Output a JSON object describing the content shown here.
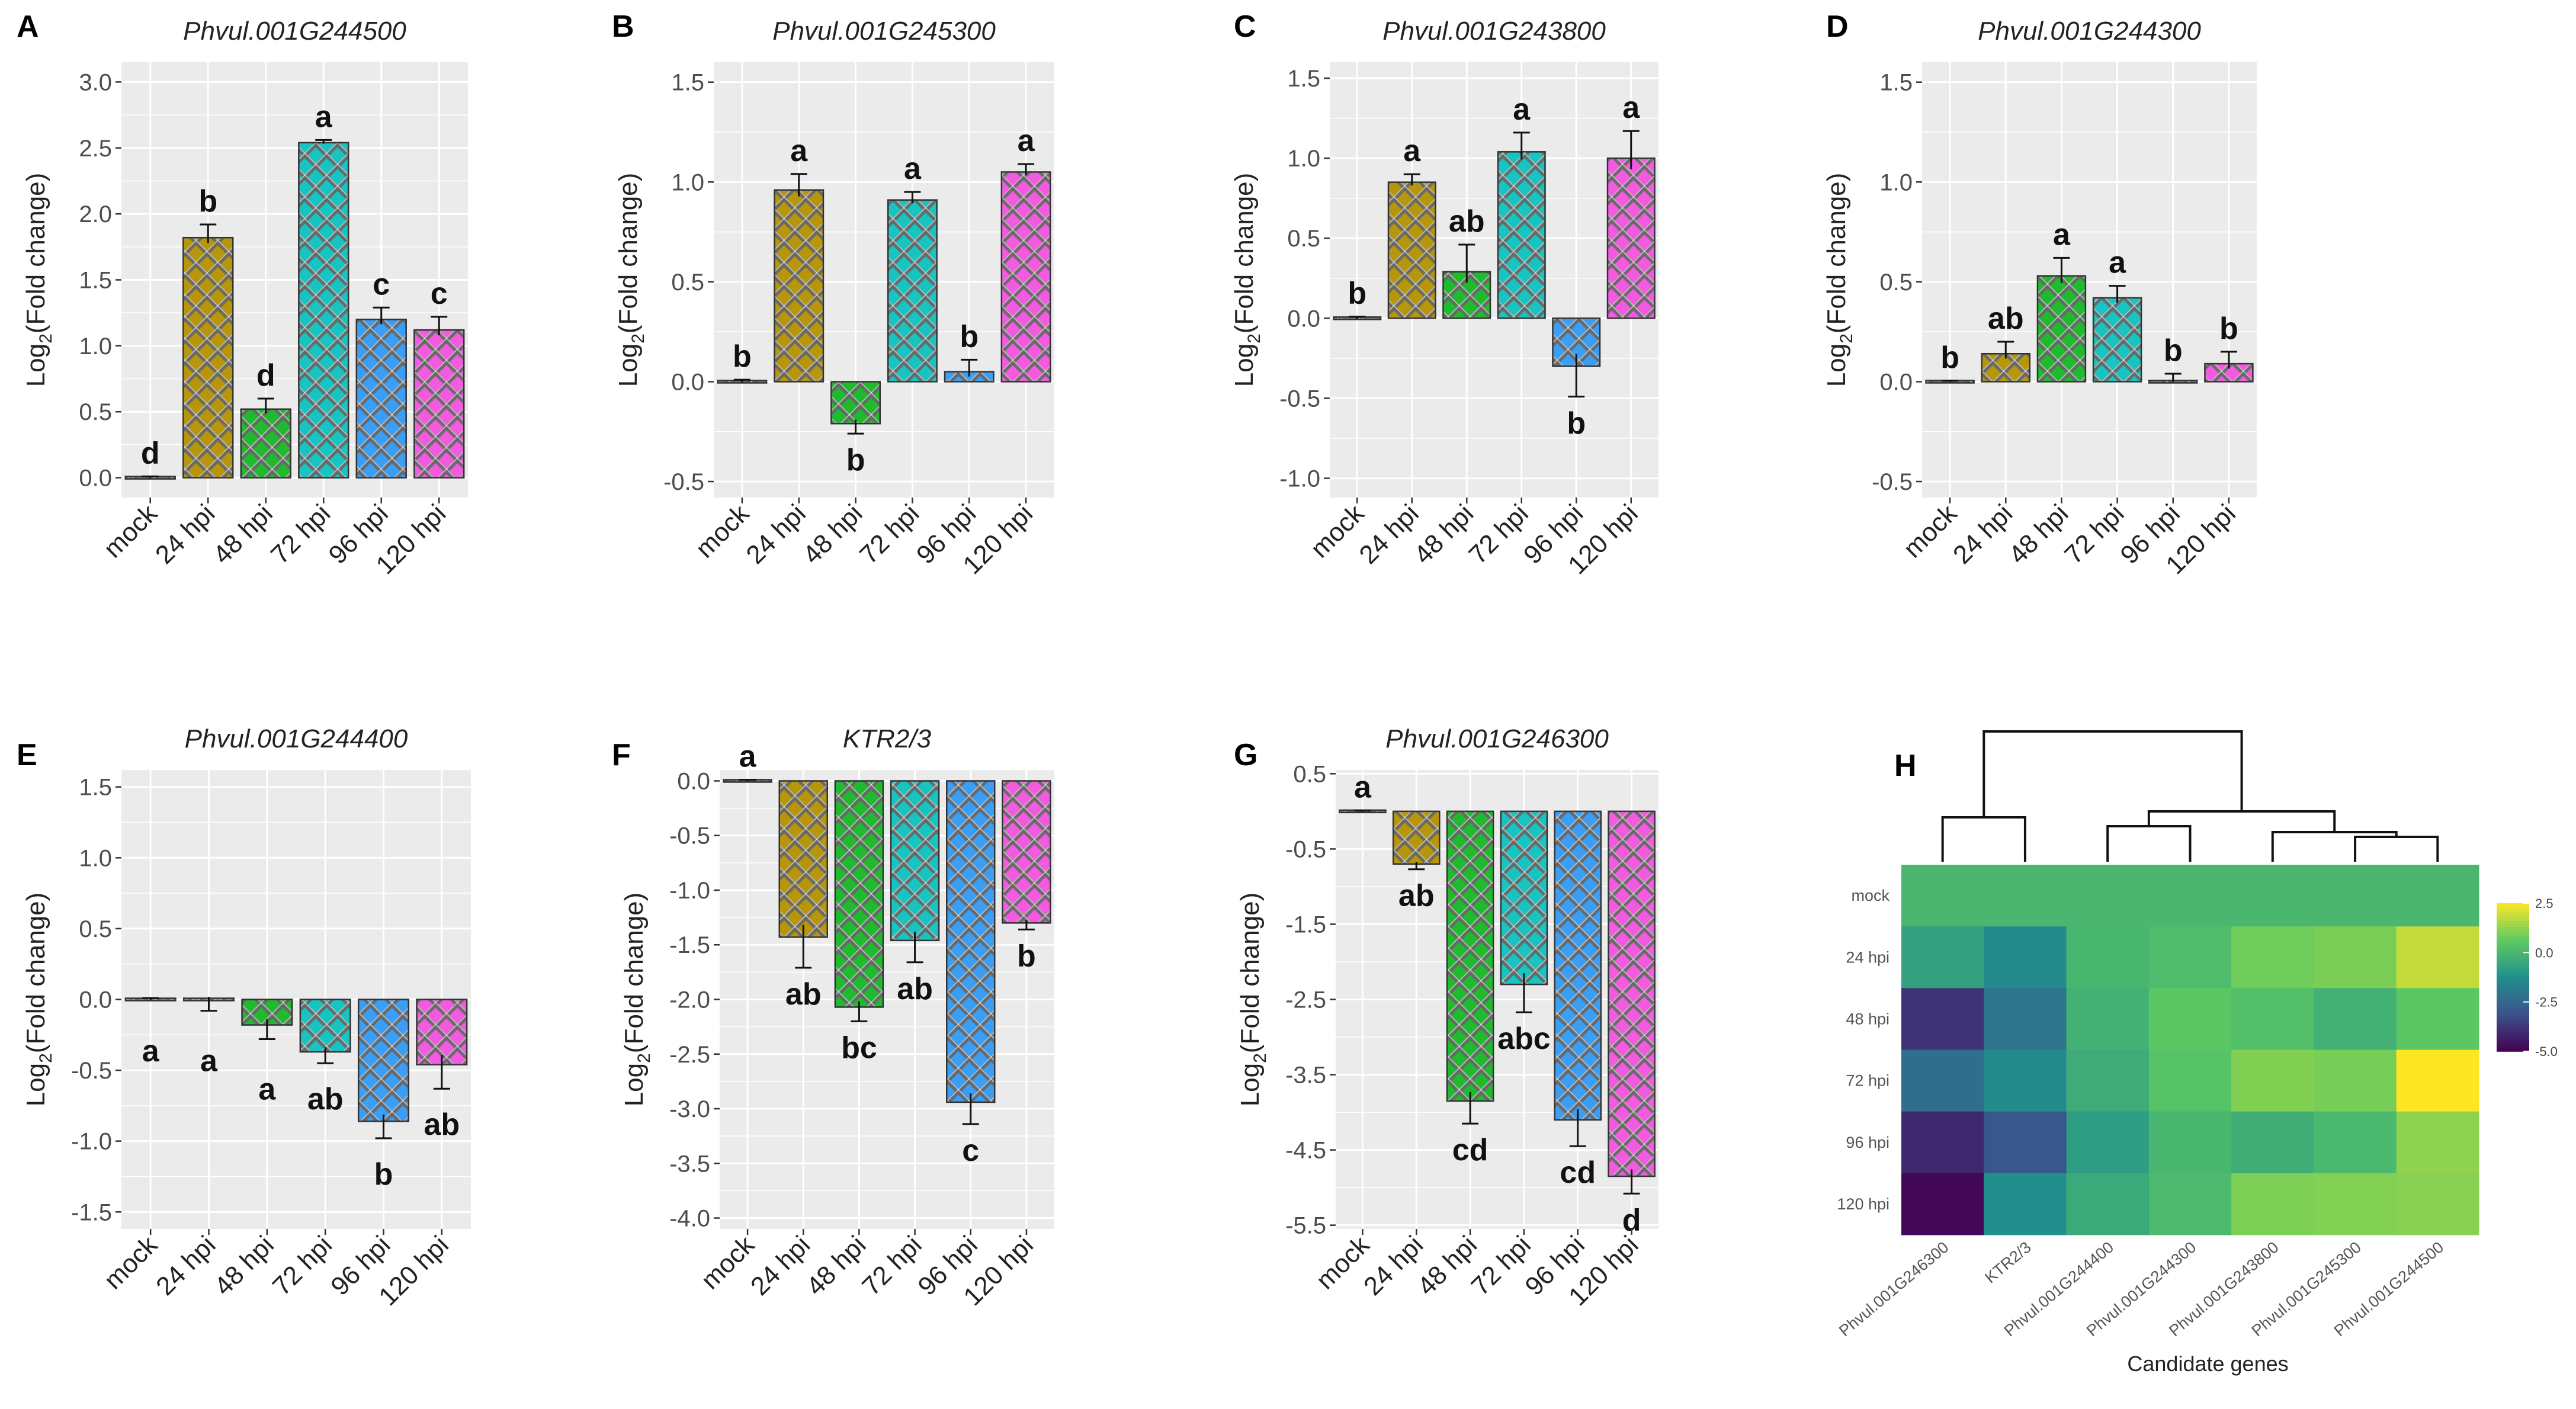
{
  "chart_data": [
    {
      "type": "bar",
      "panel": "A",
      "title": "Phvul.001G244500",
      "ylabel": "Log2(Fold change)",
      "ylabel_main": "Log",
      "ylabel_sub": "2",
      "ylabel_tail": "(Fold change)",
      "categories": [
        "mock",
        "24 hpi",
        "48 hpi",
        "72 hpi",
        "96 hpi",
        "120 hpi"
      ],
      "values": [
        0.0,
        1.82,
        0.52,
        2.54,
        1.2,
        1.12
      ],
      "errors": [
        0.01,
        0.1,
        0.08,
        0.02,
        0.09,
        0.1
      ],
      "letters": [
        "d",
        "b",
        "d",
        "a",
        "c",
        "c"
      ],
      "ylim": [
        -0.15,
        3.15
      ],
      "yticks": [
        0.0,
        0.5,
        1.0,
        1.5,
        2.0,
        2.5,
        3.0
      ],
      "ytick_labels": [
        "0.0",
        "0.5",
        "1.0",
        "1.5",
        "2.0",
        "2.5",
        "3.0"
      ]
    },
    {
      "type": "bar",
      "panel": "B",
      "title": "Phvul.001G245300",
      "ylabel": "Log2(Fold change)",
      "ylabel_main": "Log",
      "ylabel_sub": "2",
      "ylabel_tail": "(Fold change)",
      "categories": [
        "mock",
        "24 hpi",
        "48 hpi",
        "72 hpi",
        "96 hpi",
        "120 hpi"
      ],
      "values": [
        0.0,
        0.96,
        -0.21,
        0.91,
        0.05,
        1.05
      ],
      "errors": [
        0.01,
        0.08,
        0.05,
        0.04,
        0.06,
        0.04
      ],
      "letters": [
        "b",
        "a",
        "b",
        "a",
        "b",
        "a"
      ],
      "ylim": [
        -0.58,
        1.6
      ],
      "yticks": [
        -0.5,
        0.0,
        0.5,
        1.0,
        1.5
      ],
      "ytick_labels": [
        "-0.5",
        "0.0",
        "0.5",
        "1.0",
        "1.5"
      ]
    },
    {
      "type": "bar",
      "panel": "C",
      "title": "Phvul.001G243800",
      "ylabel": "Log2(Fold change)",
      "ylabel_main": "Log",
      "ylabel_sub": "2",
      "ylabel_tail": "(Fold change)",
      "categories": [
        "mock",
        "24 hpi",
        "48 hpi",
        "72 hpi",
        "96 hpi",
        "120 hpi"
      ],
      "values": [
        0.0,
        0.85,
        0.29,
        1.04,
        -0.3,
        1.0
      ],
      "errors": [
        0.01,
        0.05,
        0.17,
        0.12,
        0.19,
        0.17
      ],
      "letters": [
        "b",
        "a",
        "ab",
        "a",
        "b",
        "a"
      ],
      "ylim": [
        -1.12,
        1.6
      ],
      "yticks": [
        -1.0,
        -0.5,
        0.0,
        0.5,
        1.0,
        1.5
      ],
      "ytick_labels": [
        "-1.0",
        "-0.5",
        "0.0",
        "0.5",
        "1.0",
        "1.5"
      ]
    },
    {
      "type": "bar",
      "panel": "D",
      "title": "Phvul.001G244300",
      "ylabel": "Log2(Fold change)",
      "ylabel_main": "Log",
      "ylabel_sub": "2",
      "ylabel_tail": "(Fold change)",
      "categories": [
        "mock",
        "24 hpi",
        "48 hpi",
        "72 hpi",
        "96 hpi",
        "120 hpi"
      ],
      "values": [
        0.0,
        0.14,
        0.53,
        0.42,
        0.01,
        0.09
      ],
      "errors": [
        0.005,
        0.06,
        0.09,
        0.06,
        0.03,
        0.06
      ],
      "letters": [
        "b",
        "ab",
        "a",
        "a",
        "b",
        "b"
      ],
      "ylim": [
        -0.58,
        1.6
      ],
      "yticks": [
        -0.5,
        0.0,
        0.5,
        1.0,
        1.5
      ],
      "ytick_labels": [
        "-0.5",
        "0.0",
        "0.5",
        "1.0",
        "1.5"
      ]
    },
    {
      "type": "bar",
      "panel": "E",
      "title": "Phvul.001G244400",
      "ylabel": "Log2(Fold change)",
      "ylabel_main": "Log",
      "ylabel_sub": "2",
      "ylabel_tail": "(Fold change)",
      "categories": [
        "mock",
        "24 hpi",
        "48 hpi",
        "72 hpi",
        "96 hpi",
        "120 hpi"
      ],
      "values": [
        0.0,
        -0.01,
        -0.18,
        -0.37,
        -0.86,
        -0.46
      ],
      "errors": [
        0.01,
        0.07,
        0.1,
        0.08,
        0.12,
        0.17
      ],
      "letters": [
        "a",
        "a",
        "a",
        "ab",
        "b",
        "ab"
      ],
      "ylim": [
        -1.62,
        1.62
      ],
      "yticks": [
        -1.5,
        -1.0,
        -0.5,
        0.0,
        0.5,
        1.0,
        1.5
      ],
      "ytick_labels": [
        "-1.5",
        "-1.0",
        "-0.5",
        "0.0",
        "0.5",
        "1.0",
        "1.5"
      ]
    },
    {
      "type": "bar",
      "panel": "F",
      "title": "KTR2/3",
      "ylabel": "Log2(Fold change)",
      "ylabel_main": "Log",
      "ylabel_sub": "2",
      "ylabel_tail": "(Fold change)",
      "categories": [
        "mock",
        "24 hpi",
        "48 hpi",
        "72 hpi",
        "96 hpi",
        "120 hpi"
      ],
      "values": [
        0.0,
        -1.43,
        -2.07,
        -1.46,
        -2.94,
        -1.3
      ],
      "errors": [
        0.01,
        0.28,
        0.13,
        0.2,
        0.2,
        0.06
      ],
      "letters": [
        "a",
        "ab",
        "bc",
        "ab",
        "c",
        "b"
      ],
      "ylim": [
        -4.1,
        0.1
      ],
      "yticks": [
        -4.0,
        -3.5,
        -3.0,
        -2.5,
        -2.0,
        -1.5,
        -1.0,
        -0.5,
        0.0
      ],
      "ytick_labels": [
        "-4.0",
        "-3.5",
        "-3.0",
        "-2.5",
        "-2.0",
        "-1.5",
        "-1.0",
        "-0.5",
        "0.0"
      ]
    },
    {
      "type": "bar",
      "panel": "G",
      "title": "Phvul.001G246300",
      "ylabel": "Log2(Fold change)",
      "ylabel_main": "Log",
      "ylabel_sub": "2",
      "ylabel_tail": "(Fold change)",
      "categories": [
        "mock",
        "24 hpi",
        "48 hpi",
        "72 hpi",
        "96 hpi",
        "120 hpi"
      ],
      "values": [
        0.0,
        -0.7,
        -3.85,
        -2.3,
        -4.1,
        -4.85
      ],
      "errors": [
        0.01,
        0.07,
        0.3,
        0.37,
        0.35,
        0.23
      ],
      "letters": [
        "a",
        "ab",
        "cd",
        "abc",
        "cd",
        "d"
      ],
      "ylim": [
        -5.55,
        0.55
      ],
      "yticks": [
        -5.5,
        -4.5,
        -3.5,
        -2.5,
        -1.5,
        -0.5,
        0.5
      ],
      "ytick_labels": [
        "-5.5",
        "-4.5",
        "-3.5",
        "-2.5",
        "-1.5",
        "-0.5",
        "0.5"
      ]
    },
    {
      "type": "heatmap",
      "panel": "H",
      "xlabel": "Candidate genes",
      "rows": [
        "mock",
        "24 hpi",
        "48 hpi",
        "72 hpi",
        "96 hpi",
        "120 hpi"
      ],
      "columns": [
        "Phvul.001G246300",
        "KTR2/3",
        "Phvul.001G244400",
        "Phvul.001G244300",
        "Phvul.001G243800",
        "Phvul.001G245300",
        "Phvul.001G244500"
      ],
      "values": [
        [
          0.0,
          0.0,
          0.0,
          0.0,
          0.0,
          0.0,
          0.0
        ],
        [
          -0.7,
          -1.43,
          -0.01,
          0.14,
          0.85,
          0.96,
          1.82
        ],
        [
          -3.85,
          -2.07,
          -0.18,
          0.53,
          0.29,
          -0.21,
          0.52
        ],
        [
          -2.3,
          -1.46,
          -0.37,
          0.42,
          1.04,
          0.91,
          2.54
        ],
        [
          -4.1,
          -2.94,
          -0.86,
          0.01,
          -0.3,
          0.05,
          1.2
        ],
        [
          -4.85,
          -1.3,
          -0.46,
          0.09,
          1.0,
          1.05,
          1.12
        ]
      ],
      "scale_range": [
        -5.0,
        2.5
      ],
      "scale_ticks": [
        2.5,
        0.0,
        -2.5,
        -5.0
      ],
      "scale_tick_labels": [
        "2.5",
        "0.0",
        "-2.5",
        "-5.0"
      ],
      "dendrogram": "columns"
    }
  ],
  "palette": {
    "mock": "#7f7f7f",
    "24 hpi": "#b8960b",
    "48 hpi": "#1fba2e",
    "72 hpi": "#18c4c2",
    "96 hpi": "#3b9ef5",
    "120 hpi": "#f25ae0",
    "panel_bg": "#ebebeb",
    "grid": "#ffffff",
    "heatmap_stops": [
      "#440154",
      "#3b528b",
      "#21918c",
      "#5ec962",
      "#fde725"
    ]
  }
}
